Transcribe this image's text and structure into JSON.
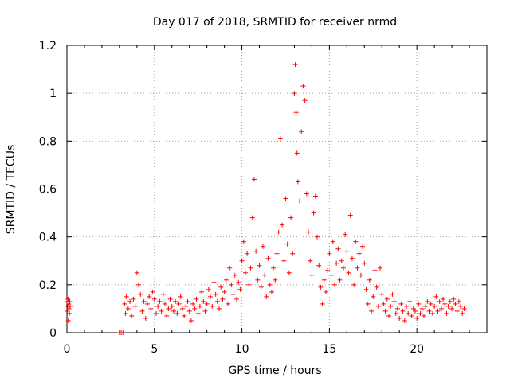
{
  "chart_data": {
    "type": "scatter",
    "title": "Day 017 of 2018, SRMTID for receiver nrmd",
    "xlabel": "GPS time / hours",
    "ylabel": "SRMTID / TECUs",
    "xlim": [
      0,
      24
    ],
    "ylim": [
      0,
      1.2
    ],
    "x_ticks": [
      0,
      5,
      10,
      15,
      20
    ],
    "x_tick_labels": [
      "0",
      "5",
      "10",
      "15",
      "20"
    ],
    "y_ticks": [
      0,
      0.2,
      0.4,
      0.6,
      0.8,
      1.0,
      1.2
    ],
    "y_tick_labels": [
      "0",
      "0.2",
      "0.4",
      "0.6",
      "0.8",
      "1",
      "1.2"
    ],
    "grid": true,
    "marker": "+",
    "color": "#ff0000",
    "series": [
      {
        "name": "SRMTID",
        "x": [
          0.0,
          0.02,
          0.04,
          0.06,
          0.08,
          0.1,
          0.12,
          0.14,
          0.16,
          0.18,
          3.0,
          3.1,
          3.2,
          3.3,
          3.35,
          3.4,
          3.5,
          3.6,
          3.7,
          3.8,
          3.9,
          4.0,
          4.1,
          4.2,
          4.3,
          4.4,
          4.5,
          4.6,
          4.7,
          4.8,
          4.9,
          5.0,
          5.1,
          5.2,
          5.3,
          5.4,
          5.5,
          5.6,
          5.7,
          5.8,
          5.9,
          6.0,
          6.1,
          6.2,
          6.3,
          6.4,
          6.5,
          6.6,
          6.7,
          6.8,
          6.9,
          7.0,
          7.1,
          7.2,
          7.3,
          7.4,
          7.5,
          7.6,
          7.7,
          7.8,
          7.9,
          8.0,
          8.1,
          8.2,
          8.3,
          8.4,
          8.5,
          8.6,
          8.7,
          8.8,
          8.9,
          9.0,
          9.1,
          9.2,
          9.3,
          9.4,
          9.5,
          9.6,
          9.7,
          9.8,
          9.9,
          10.0,
          10.1,
          10.2,
          10.3,
          10.4,
          10.5,
          10.6,
          10.7,
          10.8,
          10.9,
          11.0,
          11.1,
          11.2,
          11.3,
          11.4,
          11.5,
          11.6,
          11.7,
          11.8,
          11.9,
          12.0,
          12.1,
          12.2,
          12.3,
          12.4,
          12.5,
          12.6,
          12.7,
          12.8,
          12.9,
          13.0,
          13.05,
          13.1,
          13.15,
          13.2,
          13.3,
          13.4,
          13.5,
          13.6,
          13.7,
          13.8,
          13.9,
          14.0,
          14.1,
          14.2,
          14.3,
          14.4,
          14.5,
          14.6,
          14.7,
          14.8,
          14.9,
          15.0,
          15.1,
          15.2,
          15.3,
          15.4,
          15.5,
          15.6,
          15.7,
          15.8,
          15.9,
          16.0,
          16.1,
          16.2,
          16.3,
          16.4,
          16.5,
          16.6,
          16.7,
          16.8,
          16.9,
          17.0,
          17.1,
          17.2,
          17.3,
          17.4,
          17.5,
          17.6,
          17.7,
          17.8,
          17.9,
          18.0,
          18.1,
          18.2,
          18.3,
          18.4,
          18.5,
          18.6,
          18.7,
          18.8,
          18.9,
          19.0,
          19.1,
          19.2,
          19.3,
          19.4,
          19.5,
          19.6,
          19.7,
          19.8,
          19.9,
          20.0,
          20.1,
          20.2,
          20.3,
          20.4,
          20.5,
          20.6,
          20.7,
          20.8,
          20.9,
          21.0,
          21.1,
          21.2,
          21.3,
          21.4,
          21.5,
          21.6,
          21.7,
          21.8,
          21.9,
          22.0,
          22.1,
          22.2,
          22.3,
          22.4,
          22.5,
          22.6,
          22.7
        ],
        "y": [
          0.13,
          0.09,
          0.11,
          0.14,
          0.05,
          0.12,
          0.1,
          0.08,
          0.13,
          0.11,
          0.0,
          0.0,
          0.0,
          0.12,
          0.08,
          0.15,
          0.1,
          0.13,
          0.07,
          0.14,
          0.11,
          0.25,
          0.2,
          0.16,
          0.09,
          0.13,
          0.06,
          0.12,
          0.15,
          0.1,
          0.17,
          0.14,
          0.08,
          0.11,
          0.13,
          0.09,
          0.16,
          0.12,
          0.07,
          0.1,
          0.14,
          0.11,
          0.09,
          0.13,
          0.08,
          0.12,
          0.15,
          0.1,
          0.07,
          0.11,
          0.13,
          0.09,
          0.05,
          0.12,
          0.1,
          0.14,
          0.08,
          0.11,
          0.17,
          0.13,
          0.09,
          0.12,
          0.18,
          0.15,
          0.11,
          0.21,
          0.16,
          0.13,
          0.1,
          0.19,
          0.14,
          0.17,
          0.22,
          0.12,
          0.27,
          0.2,
          0.16,
          0.24,
          0.14,
          0.21,
          0.18,
          0.3,
          0.38,
          0.25,
          0.33,
          0.2,
          0.27,
          0.48,
          0.64,
          0.34,
          0.22,
          0.28,
          0.19,
          0.36,
          0.24,
          0.15,
          0.31,
          0.2,
          0.17,
          0.27,
          0.22,
          0.33,
          0.42,
          0.81,
          0.45,
          0.3,
          0.56,
          0.37,
          0.25,
          0.48,
          0.33,
          1.0,
          1.12,
          0.92,
          0.75,
          0.63,
          0.55,
          0.84,
          1.03,
          0.97,
          0.58,
          0.42,
          0.3,
          0.24,
          0.5,
          0.57,
          0.4,
          0.28,
          0.19,
          0.12,
          0.22,
          0.17,
          0.26,
          0.33,
          0.24,
          0.38,
          0.2,
          0.29,
          0.35,
          0.22,
          0.3,
          0.27,
          0.41,
          0.34,
          0.25,
          0.49,
          0.31,
          0.2,
          0.38,
          0.27,
          0.33,
          0.24,
          0.36,
          0.29,
          0.18,
          0.12,
          0.22,
          0.09,
          0.15,
          0.26,
          0.19,
          0.11,
          0.27,
          0.16,
          0.12,
          0.09,
          0.14,
          0.07,
          0.11,
          0.16,
          0.13,
          0.08,
          0.1,
          0.06,
          0.12,
          0.09,
          0.05,
          0.11,
          0.08,
          0.13,
          0.07,
          0.1,
          0.09,
          0.06,
          0.12,
          0.08,
          0.1,
          0.07,
          0.11,
          0.13,
          0.09,
          0.12,
          0.08,
          0.11,
          0.15,
          0.09,
          0.13,
          0.1,
          0.14,
          0.12,
          0.08,
          0.11,
          0.13,
          0.1,
          0.14,
          0.12,
          0.09,
          0.13,
          0.11,
          0.08,
          0.1
        ]
      }
    ]
  }
}
